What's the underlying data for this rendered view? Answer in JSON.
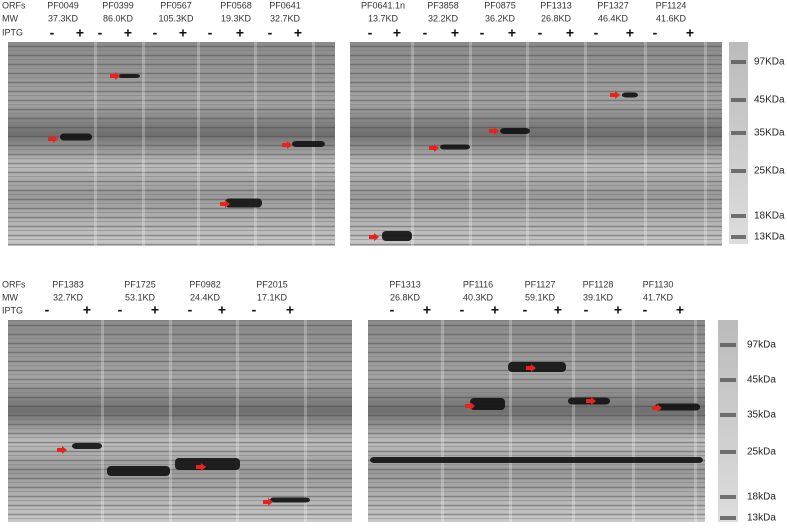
{
  "figure": {
    "rows": [
      {
        "row_labels": [
          "ORFs",
          "MW",
          "IPTG"
        ],
        "panels": [
          {
            "lanes": [
              {
                "orf": "PF0049",
                "mw": "37.3KD",
                "iptg": [
                  "-",
                  "+"
                ]
              },
              {
                "orf": "PF0399",
                "mw": "86.0KD",
                "iptg": [
                  "-",
                  "+"
                ]
              },
              {
                "orf": "PF0567",
                "mw": "105.3KD",
                "iptg": [
                  "-",
                  "+"
                ]
              },
              {
                "orf": "PF0568",
                "mw": "19.3KD",
                "iptg": [
                  "-",
                  "+"
                ]
              },
              {
                "orf": "PF0641",
                "mw": "32.7KD",
                "iptg": [
                  "-",
                  "+"
                ]
              }
            ]
          },
          {
            "lanes": [
              {
                "orf": "PF0641.1n",
                "mw": "13.7KD",
                "iptg": [
                  "-",
                  "+"
                ]
              },
              {
                "orf": "PF3858",
                "mw": "32.2KD",
                "iptg": [
                  "-",
                  "+"
                ]
              },
              {
                "orf": "PF0875",
                "mw": "36.2KD",
                "iptg": [
                  "-",
                  "+"
                ]
              },
              {
                "orf": "PF1313",
                "mw": "26.8KD",
                "iptg": [
                  "-",
                  "+"
                ]
              },
              {
                "orf": "PF1327",
                "mw": "46.4KD",
                "iptg": [
                  "-",
                  "+"
                ]
              },
              {
                "orf": "PF1124",
                "mw": "41.6KD",
                "iptg": [
                  "-",
                  "+"
                ]
              }
            ]
          }
        ],
        "marker": [
          "97KDa",
          "45KDa",
          "35KDa",
          "25KDa",
          "18KDa",
          "13KDa"
        ]
      },
      {
        "row_labels": [
          "ORFs",
          "MW",
          "IPTG"
        ],
        "panels": [
          {
            "lanes": [
              {
                "orf": "PF1383",
                "mw": "32.7KD",
                "iptg": [
                  "-",
                  "+"
                ]
              },
              {
                "orf": "PF1725",
                "mw": "53.1KD",
                "iptg": [
                  "-",
                  "+"
                ]
              },
              {
                "orf": "PF0982",
                "mw": "24.4KD",
                "iptg": [
                  "-",
                  "+"
                ]
              },
              {
                "orf": "PF2015",
                "mw": "17.1KD",
                "iptg": [
                  "-",
                  "+"
                ]
              }
            ]
          },
          {
            "lanes": [
              {
                "orf": "PF1313",
                "mw": "26.8KD",
                "iptg": [
                  "-",
                  "+"
                ]
              },
              {
                "orf": "PF1116",
                "mw": "40.3KD",
                "iptg": [
                  "-",
                  "+"
                ]
              },
              {
                "orf": "PF1127",
                "mw": "59.1KD",
                "iptg": [
                  "-",
                  "+"
                ]
              },
              {
                "orf": "PF1128",
                "mw": "39.1KD",
                "iptg": [
                  "-",
                  "+"
                ]
              },
              {
                "orf": "PF1130",
                "mw": "41.7KD",
                "iptg": [
                  "-",
                  "+"
                ]
              }
            ]
          }
        ],
        "marker": [
          "97kDa",
          "45kDa",
          "35kDa",
          "25kDa",
          "18kDa",
          "13kDa"
        ]
      }
    ]
  }
}
